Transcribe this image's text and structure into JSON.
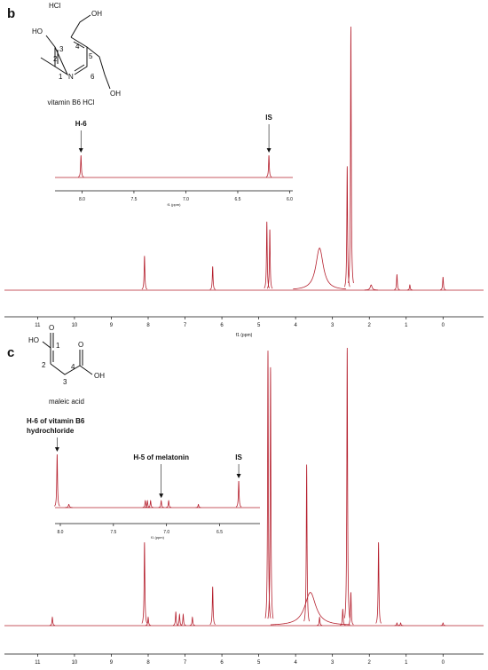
{
  "figure": {
    "panels": [
      {
        "label": "b",
        "structure": [
          "HCl",
          "HO",
          "3",
          "4",
          "OH",
          "2",
          "5",
          "N",
          "1",
          "6",
          "OH"
        ],
        "compound": "vitamin B6 HCl"
      },
      {
        "label": "c",
        "structure": [
          "HO",
          "1",
          "O",
          "2",
          "3",
          "4",
          "O",
          "OH"
        ],
        "compound": "maleic acid"
      }
    ]
  },
  "chart_data": [
    {
      "type": "spectrum",
      "xlabel": "f1 (ppm)",
      "color": "#b5202e",
      "xlim": [
        11.9,
        -1.1
      ],
      "xticks": [
        11,
        10,
        9,
        8,
        7,
        6,
        5,
        4,
        3,
        2,
        1,
        0
      ],
      "x": [
        8.1,
        6.25,
        4.78,
        4.7,
        3.35,
        2.6,
        2.5,
        1.95,
        1.25,
        0.9,
        0
      ],
      "values": [
        13,
        9,
        26,
        23,
        16,
        47,
        100,
        2,
        6,
        2,
        5
      ],
      "widths": [
        0.01,
        0.01,
        0.01,
        0.01,
        0.12,
        0.01,
        0.01,
        0.03,
        0.01,
        0.01,
        0.01
      ]
    },
    {
      "type": "spectrum",
      "xlabel": "f1 (ppm)",
      "color": "#b5202e",
      "xlim": [
        8.26,
        5.97
      ],
      "xticks": [
        {
          "value": 8,
          "label": "8.0"
        },
        7.5,
        {
          "value": 7,
          "label": "7.0"
        },
        6.5,
        {
          "value": 6,
          "label": "6.0"
        }
      ],
      "x": [
        8.01,
        6.2
      ],
      "values": [
        100,
        100
      ],
      "widths": [
        0.004,
        0.004
      ],
      "annotations": [
        {
          "text": [
            "H-6"
          ],
          "x": 8.01
        },
        {
          "text": [
            "IS"
          ],
          "x": 6.2
        }
      ]
    },
    {
      "type": "spectrum",
      "xlabel": "f1 (ppm)",
      "color": "#b5202e",
      "xlim": [
        11.9,
        -1.1
      ],
      "xticks": [
        11,
        10,
        9,
        8,
        7,
        6,
        5,
        4,
        3,
        2,
        1,
        0
      ],
      "x": [
        10.6,
        8.1,
        8.0,
        7.25,
        7.15,
        7.05,
        6.8,
        6.25,
        4.75,
        4.68,
        3.7,
        3.6,
        3.35,
        2.72,
        2.6,
        2.5,
        1.75,
        1.25,
        1.15,
        0
      ],
      "values": [
        3,
        30,
        3,
        5,
        4,
        4,
        3,
        14,
        99,
        93,
        58,
        12,
        3,
        6,
        100,
        12,
        30,
        1,
        1,
        1
      ],
      "widths": [
        0.01,
        0.01,
        0.01,
        0.01,
        0.01,
        0.01,
        0.01,
        0.01,
        0.01,
        0.01,
        0.01,
        0.18,
        0.01,
        0.01,
        0.01,
        0.01,
        0.01,
        0.01,
        0.01,
        0.01
      ]
    },
    {
      "type": "spectrum",
      "xlabel": "f1 (ppm)",
      "color": "#b5202e",
      "xlim": [
        8.05,
        6.12
      ],
      "xticks": [
        {
          "value": 8,
          "label": "8.0"
        },
        7.5,
        {
          "value": 7,
          "label": "7.0"
        },
        6.5
      ],
      "x": [
        8.03,
        7.92,
        7.2,
        7.18,
        7.15,
        7.05,
        6.98,
        6.7,
        6.32
      ],
      "values": [
        100,
        6,
        13,
        13,
        13,
        13,
        13,
        6,
        50
      ],
      "widths": [
        0.004,
        0.006,
        0.003,
        0.003,
        0.003,
        0.003,
        0.003,
        0.004,
        0.003
      ],
      "annotations": [
        {
          "text": [
            "H-6 of vitamin B6",
            "hydrochloride"
          ],
          "x": 8.03
        },
        {
          "text": [
            "H-5 of melatonin"
          ],
          "x": 7.05
        },
        {
          "text": [
            "IS"
          ],
          "x": 6.32
        }
      ]
    }
  ]
}
